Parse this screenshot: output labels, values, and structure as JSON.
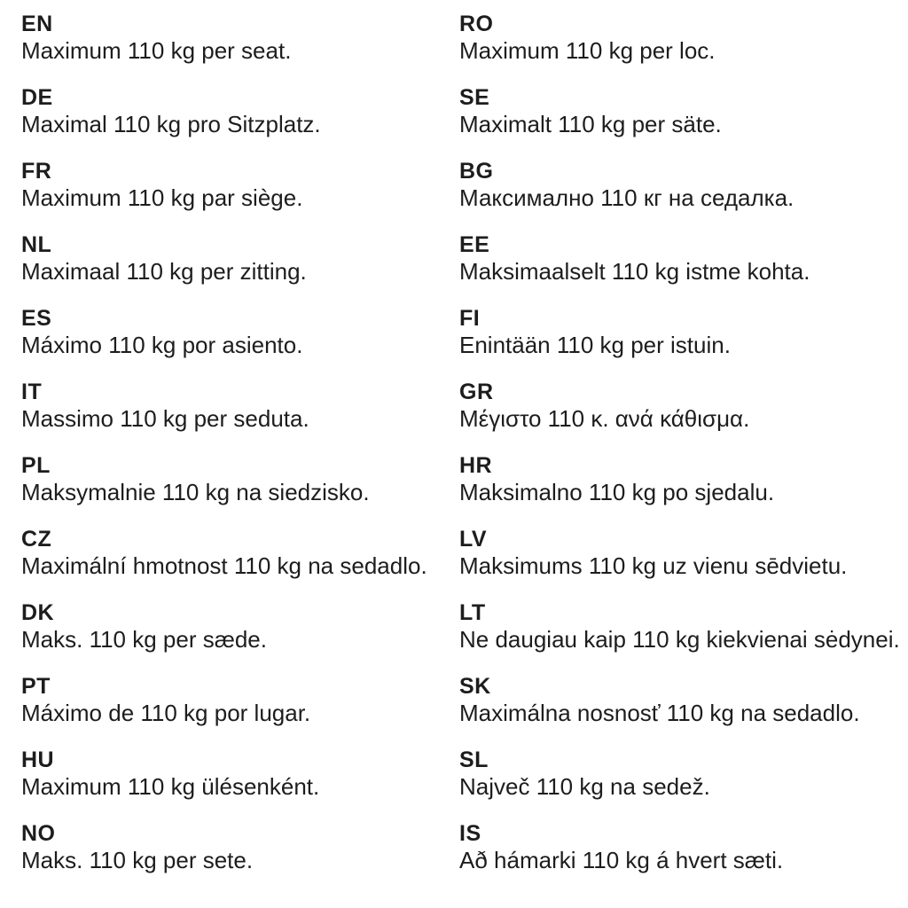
{
  "colors": {
    "text": "#1d1d1d",
    "background": "#ffffff"
  },
  "columns": [
    {
      "entries": [
        {
          "code": "EN",
          "text": "Maximum 110 kg per seat."
        },
        {
          "code": "DE",
          "text": "Maximal 110 kg pro Sitzplatz."
        },
        {
          "code": "FR",
          "text": "Maximum 110 kg par siège."
        },
        {
          "code": "NL",
          "text": "Maximaal 110 kg per zitting."
        },
        {
          "code": "ES",
          "text": "Máximo 110 kg por asiento."
        },
        {
          "code": "IT",
          "text": "Massimo 110 kg per seduta."
        },
        {
          "code": "PL",
          "text": "Maksymalnie 110 kg na siedzisko."
        },
        {
          "code": "CZ",
          "text": "Maximální hmotnost 110 kg na sedadlo."
        },
        {
          "code": "DK",
          "text": "Maks. 110 kg per sæde."
        },
        {
          "code": "PT",
          "text": "Máximo de 110 kg por lugar."
        },
        {
          "code": "HU",
          "text": "Maximum 110 kg ülésenként."
        },
        {
          "code": "NO",
          "text": "Maks. 110 kg per sete."
        }
      ]
    },
    {
      "entries": [
        {
          "code": "RO",
          "text": "Maximum 110 kg per loc."
        },
        {
          "code": "SE",
          "text": "Maximalt 110 kg per säte."
        },
        {
          "code": "BG",
          "text": "Максимално 110 кг на седалка."
        },
        {
          "code": "EE",
          "text": "Maksimaalselt 110 kg istme kohta."
        },
        {
          "code": "FI",
          "text": "Enintään 110 kg per istuin."
        },
        {
          "code": "GR",
          "text": "Μέγιστο 110 κ. ανά κάθισμα."
        },
        {
          "code": "HR",
          "text": "Maksimalno 110 kg po sjedalu."
        },
        {
          "code": "LV",
          "text": "Maksimums 110 kg uz vienu sēdvietu."
        },
        {
          "code": "LT",
          "text": "Ne daugiau kaip 110 kg kiekvienai sėdynei."
        },
        {
          "code": "SK",
          "text": "Maximálna nosnosť 110 kg na sedadlo."
        },
        {
          "code": "SL",
          "text": "Največ 110 kg na sedež."
        },
        {
          "code": "IS",
          "text": "Að hámarki 110 kg á hvert sæti."
        }
      ]
    }
  ]
}
